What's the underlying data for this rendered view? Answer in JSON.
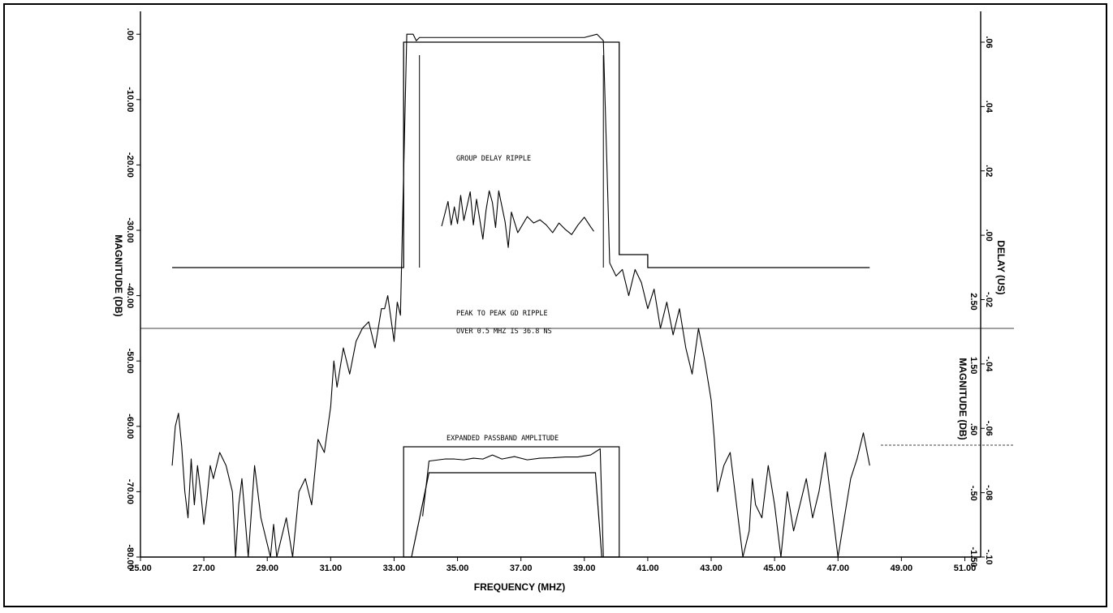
{
  "chart_data": {
    "type": "line",
    "xlabel": "FREQUENCY (MHZ)",
    "ylabel_left": "MAGNITUDE (DB)",
    "ylabel_right_delay": "DELAY (US)",
    "ylabel_right_passband": "MAGNITUDE (DB)",
    "x_ticks": [
      "25.00",
      "27.00",
      "29.00",
      "31.00",
      "33.00",
      "35.00",
      "37.00",
      "39.00",
      "41.00",
      "43.00",
      "45.00",
      "47.00",
      "49.00",
      "51.00"
    ],
    "xlim": [
      25,
      51.5
    ],
    "y_left_ticks": [
      ".00",
      "-10.00",
      "-20.00",
      "-30.00",
      "-40.00",
      "-50.00",
      "-60.00",
      "-70.00",
      "-80.00"
    ],
    "ylim_left": [
      -80,
      3.5
    ],
    "y_delay_ticks": [
      ".06",
      ".04",
      ".02",
      ".00",
      "-.02",
      "-.04",
      "-.06",
      "-.08",
      "-.10"
    ],
    "y_passband_ticks": [
      "2.50",
      "1.50",
      ".50",
      "-.50",
      "-1.50"
    ],
    "annotations": {
      "group_delay": "GROUP DELAY RIPPLE",
      "peak_line1": "PEAK TO PEAK GD RIPPLE",
      "peak_line2": "OVER 0.5 MHZ IS  36.8 NS",
      "expanded": "EXPANDED PASSBAND AMPLITUDE"
    },
    "series": [
      {
        "role": "magnitude",
        "x": [
          26,
          26.1,
          26.2,
          26.3,
          26.4,
          26.5,
          26.6,
          26.7,
          26.8,
          26.9,
          27,
          27.1,
          27.2,
          27.3,
          27.5,
          27.7,
          27.9,
          28,
          28.1,
          28.2,
          28.4,
          28.6,
          28.8,
          29,
          29.1,
          29.2,
          29.3,
          29.5,
          29.6,
          29.8,
          30,
          30.2,
          30.4,
          30.6,
          30.8,
          31,
          31.1,
          31.2,
          31.4,
          31.6,
          31.8,
          32,
          32.2,
          32.4,
          32.6,
          32.7,
          32.8,
          33,
          33.1,
          33.2,
          33.4,
          33.6,
          33.7,
          33.8,
          34,
          35,
          36,
          37,
          38,
          39,
          39.4,
          39.5,
          39.6,
          39.8,
          40,
          40.2,
          40.4,
          40.6,
          40.8,
          41,
          41.2,
          41.4,
          41.6,
          41.8,
          42,
          42.2,
          42.4,
          42.6,
          42.8,
          43,
          43.1,
          43.2,
          43.4,
          43.6,
          43.8,
          44,
          44.2,
          44.3,
          44.4,
          44.6,
          44.8,
          45,
          45.2,
          45.4,
          45.6,
          45.8,
          46,
          46.2,
          46.4,
          46.6,
          46.8,
          47,
          47.2,
          47.4,
          47.6,
          47.8,
          48
        ],
        "y": [
          -66,
          -60,
          -58,
          -63,
          -70,
          -74,
          -65,
          -72,
          -66,
          -70,
          -75,
          -71,
          -66,
          -68,
          -64,
          -66,
          -70,
          -80,
          -72,
          -68,
          -80,
          -66,
          -74,
          -78,
          -80,
          -75,
          -80,
          -76,
          -74,
          -80,
          -70,
          -68,
          -72,
          -62,
          -64,
          -57,
          -50,
          -54,
          -48,
          -52,
          -47,
          -45,
          -44,
          -48,
          -42,
          -42,
          -40,
          -47,
          -41,
          -43,
          0,
          0,
          -1,
          -0.5,
          -0.5,
          -0.5,
          -0.5,
          -0.5,
          -0.5,
          -0.5,
          0,
          -0.5,
          -1,
          -35,
          -37,
          -36,
          -40,
          -36,
          -38,
          -42,
          -39,
          -45,
          -41,
          -46,
          -42,
          -48,
          -52,
          -45,
          -50,
          -56,
          -62,
          -70,
          -66,
          -64,
          -72,
          -80,
          -76,
          -68,
          -72,
          -74,
          -66,
          -72,
          -80,
          -70,
          -76,
          -72,
          -68,
          -74,
          -70,
          -64,
          -72,
          -80,
          -74,
          -68,
          -65,
          -61,
          -66
        ]
      },
      {
        "role": "group-delay",
        "x": [
          34.5,
          34.7,
          34.8,
          34.9,
          35,
          35.1,
          35.2,
          35.4,
          35.5,
          35.6,
          35.8,
          35.9,
          36,
          36.1,
          36.2,
          36.3,
          36.5,
          36.6,
          36.7,
          36.9,
          37.2,
          37.4,
          37.6,
          37.8,
          38,
          38.2,
          38.4,
          38.6,
          38.8,
          39,
          39.2,
          39.3
        ],
        "y": [
          0.0028,
          0.0105,
          0.0032,
          0.0088,
          0.0036,
          0.0124,
          0.0046,
          0.0135,
          0.0032,
          0.0112,
          -0.0012,
          0.0078,
          0.0138,
          0.0102,
          0.0024,
          0.0138,
          0.0042,
          -0.0038,
          0.0072,
          0.0008,
          0.0058,
          0.0038,
          0.0048,
          0.0032,
          0.0008,
          0.0038,
          0.0018,
          0.0002,
          0.0032,
          0.0056,
          0.0026,
          0.0012
        ]
      },
      {
        "role": "expanded-passband",
        "x": [
          33.9,
          34.1,
          34.3,
          34.6,
          34.9,
          35.2,
          35.5,
          35.8,
          36.1,
          36.4,
          36.8,
          37.2,
          37.6,
          38,
          38.4,
          38.8,
          39.2,
          39.5,
          39.6
        ],
        "y": [
          -0.5,
          0.85,
          0.87,
          0.9,
          0.9,
          0.88,
          0.92,
          0.9,
          1,
          0.9,
          0.96,
          0.88,
          0.92,
          0.93,
          0.95,
          0.95,
          1,
          1.15,
          -1.5
        ]
      }
    ]
  }
}
